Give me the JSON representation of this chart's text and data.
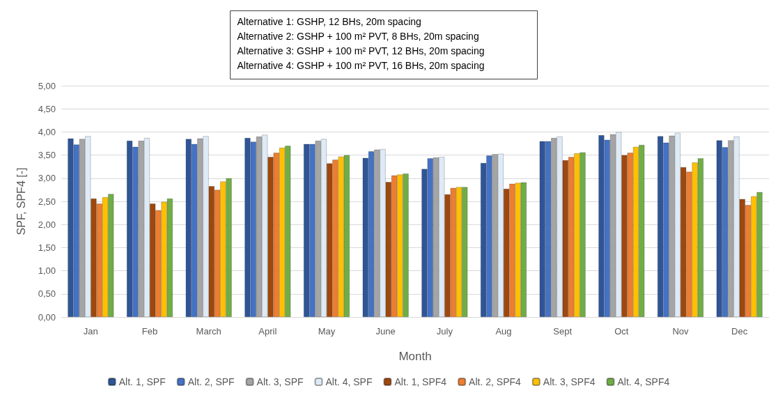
{
  "chart_data": {
    "type": "bar",
    "xlabel": "Month",
    "ylabel": "SPF, SPF4 [-]",
    "categories": [
      "Jan",
      "Feb",
      "March",
      "April",
      "May",
      "June",
      "July",
      "Aug",
      "Sept",
      "Oct",
      "Nov",
      "Dec"
    ],
    "series": [
      {
        "name": "Alt. 1, SPF",
        "color": "#2f5597",
        "values": [
          3.86,
          3.81,
          3.85,
          3.87,
          3.74,
          3.44,
          3.2,
          3.33,
          3.8,
          3.93,
          3.91,
          3.82
        ]
      },
      {
        "name": "Alt. 2, SPF",
        "color": "#4472c4",
        "values": [
          3.73,
          3.68,
          3.74,
          3.79,
          3.74,
          3.58,
          3.43,
          3.49,
          3.8,
          3.83,
          3.77,
          3.67
        ]
      },
      {
        "name": "Alt. 3, SPF",
        "color": "#a5a5a5",
        "values": [
          3.85,
          3.81,
          3.86,
          3.9,
          3.81,
          3.62,
          3.45,
          3.52,
          3.87,
          3.95,
          3.92,
          3.82
        ]
      },
      {
        "name": "Alt. 4, SPF",
        "color": "#deebf7",
        "values": [
          3.91,
          3.87,
          3.91,
          3.94,
          3.85,
          3.63,
          3.46,
          3.53,
          3.9,
          4.0,
          3.98,
          3.9
        ]
      },
      {
        "name": "Alt. 1, SPF4",
        "color": "#9e480e",
        "values": [
          2.56,
          2.45,
          2.83,
          3.46,
          3.32,
          2.92,
          2.65,
          2.77,
          3.39,
          3.5,
          3.24,
          2.55
        ]
      },
      {
        "name": "Alt. 2, SPF4",
        "color": "#ed7d31",
        "values": [
          2.45,
          2.31,
          2.75,
          3.55,
          3.4,
          3.06,
          2.79,
          2.88,
          3.46,
          3.55,
          3.14,
          2.42
        ]
      },
      {
        "name": "Alt. 3, SPF4",
        "color": "#ffc000",
        "values": [
          2.59,
          2.49,
          2.93,
          3.66,
          3.47,
          3.08,
          2.81,
          2.9,
          3.54,
          3.68,
          3.34,
          2.61
        ]
      },
      {
        "name": "Alt. 4, SPF4",
        "color": "#70ad47",
        "values": [
          2.66,
          2.56,
          3.0,
          3.7,
          3.5,
          3.1,
          2.81,
          2.91,
          3.56,
          3.72,
          3.43,
          2.7
        ]
      }
    ],
    "ylim": [
      0,
      5
    ],
    "yticks": [
      {
        "value": 0,
        "label": "0,00"
      },
      {
        "value": 0.5,
        "label": "0,50"
      },
      {
        "value": 1,
        "label": "1,00"
      },
      {
        "value": 1.5,
        "label": "1,50"
      },
      {
        "value": 2,
        "label": "2,00"
      },
      {
        "value": 2.5,
        "label": "2,50"
      },
      {
        "value": 3,
        "label": "3,00"
      },
      {
        "value": 3.5,
        "label": "3,50"
      },
      {
        "value": 4,
        "label": "4,00"
      },
      {
        "value": 4.5,
        "label": "4,50"
      },
      {
        "value": 5,
        "label": "5,00"
      }
    ],
    "grid": "y",
    "legend": "bottom",
    "annotations": [
      "Alternative 1: GSHP, 12 BHs, 20m spacing",
      "Alternative 2: GSHP + 100 m² PVT, 8 BHs, 20m spacing",
      "Alternative 3: GSHP + 100 m² PVT, 12 BHs, 20m spacing",
      "Alternative 4: GSHP + 100 m² PVT, 16 BHs, 20m spacing"
    ]
  }
}
